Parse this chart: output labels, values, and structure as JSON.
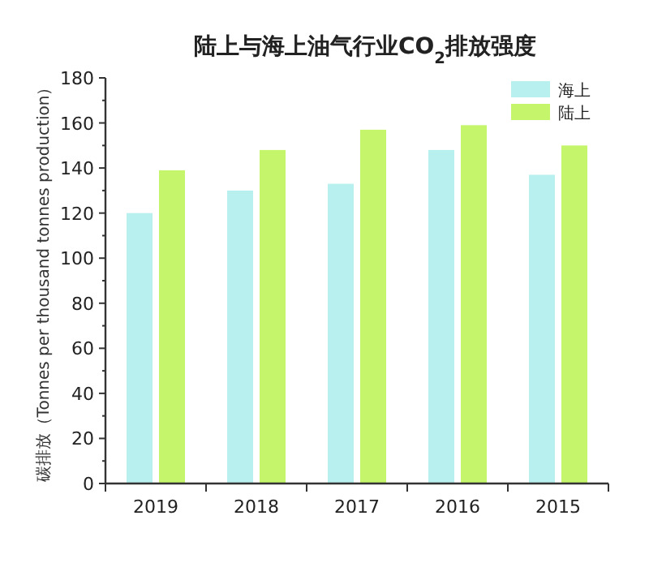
{
  "chart_data": {
    "type": "bar",
    "title": "陆上与海上油气行业CO$_{2}$排放强度",
    "ylabel": "碳排放（Tonnes per thousand tonnes production）",
    "categories": [
      "2019",
      "2018",
      "2017",
      "2016",
      "2015"
    ],
    "series": [
      {
        "name": "海上",
        "color": "#b8f0f0",
        "values": [
          120,
          130,
          133,
          148,
          137
        ]
      },
      {
        "name": "陆上",
        "color": "#c4f56a",
        "values": [
          139,
          148,
          157,
          159,
          150
        ]
      }
    ],
    "ylim": [
      0,
      180
    ],
    "yticks": [
      0,
      20,
      40,
      60,
      80,
      100,
      120,
      140,
      160,
      180
    ],
    "grid": false,
    "legend": "top right"
  }
}
